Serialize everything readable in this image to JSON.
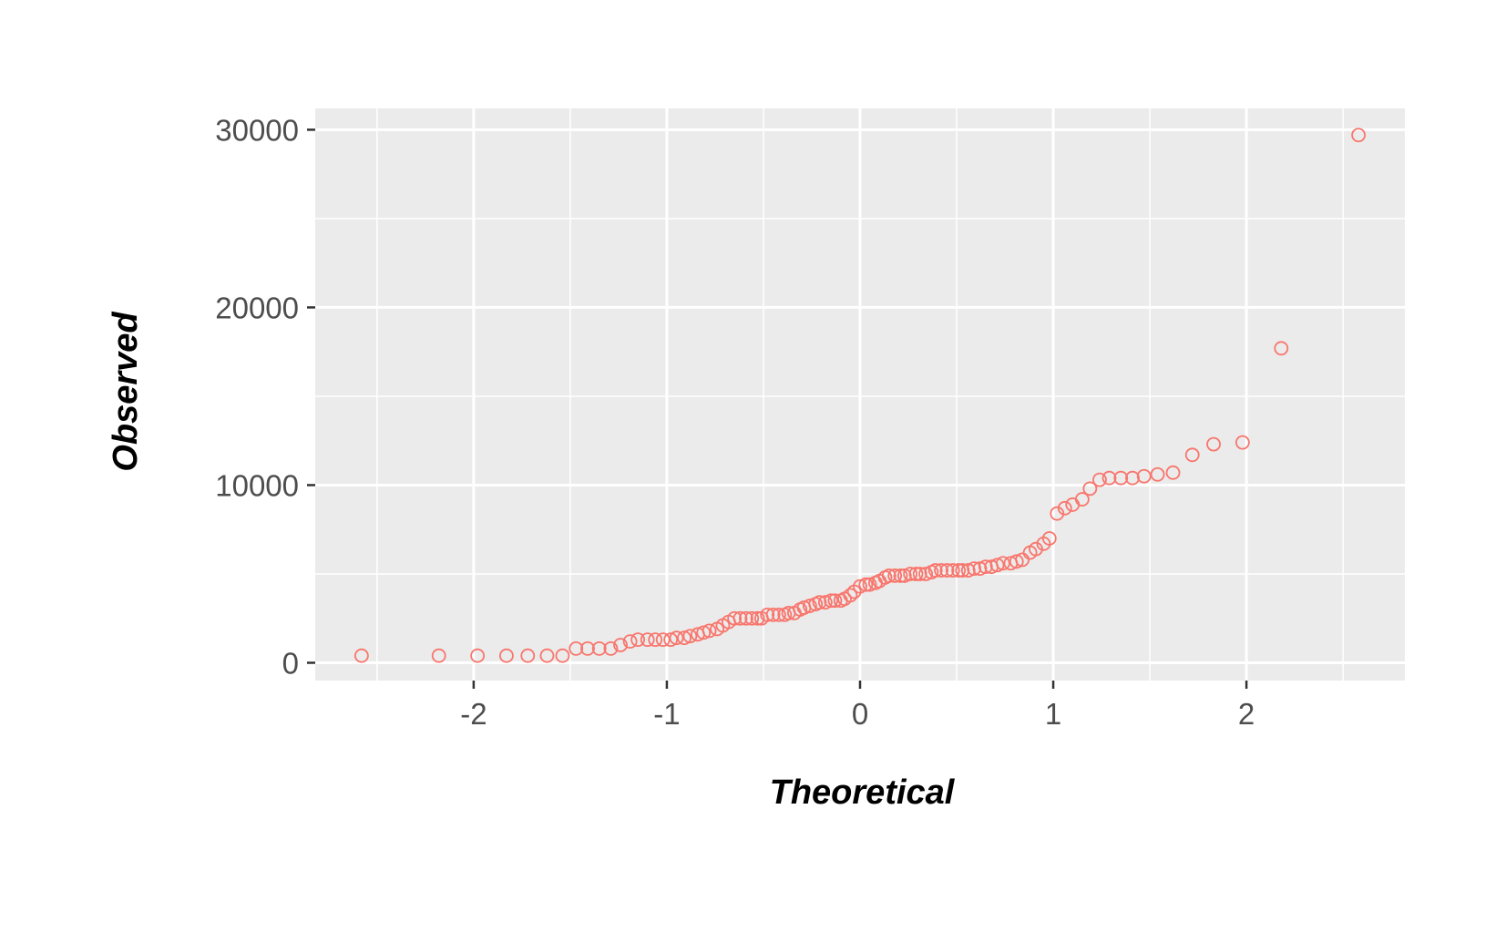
{
  "chart_data": {
    "type": "scatter",
    "title": "",
    "xlabel": "Theoretical",
    "ylabel": "Observed",
    "xlim": [
      -2.82,
      2.82
    ],
    "ylim": [
      -1000,
      31200
    ],
    "xticks": [
      -2,
      -1,
      0,
      1,
      2
    ],
    "xtick_labels": [
      "-2",
      "-1",
      "0",
      "1",
      "2"
    ],
    "yticks": [
      0,
      10000,
      20000,
      30000
    ],
    "ytick_labels": [
      "0",
      "10000",
      "20000",
      "30000"
    ],
    "grid": true,
    "legend": "none",
    "colors": {
      "point": "#F8766D",
      "panel": "#EBEBEB",
      "grid": "#FFFFFF"
    },
    "series": [
      {
        "x": [
          -2.58,
          -2.18,
          -1.98,
          -1.83,
          -1.72,
          -1.62,
          -1.54,
          -1.47,
          -1.41,
          -1.35,
          -1.29,
          -1.24,
          -1.19,
          -1.15,
          -1.1,
          -1.06,
          -1.02,
          -0.98,
          -0.95,
          -0.91,
          -0.88,
          -0.84,
          -0.81,
          -0.78,
          -0.74,
          -0.71,
          -0.68,
          -0.65,
          -0.62,
          -0.59,
          -0.56,
          -0.53,
          -0.51,
          -0.48,
          -0.45,
          -0.42,
          -0.39,
          -0.37,
          -0.34,
          -0.31,
          -0.29,
          -0.26,
          -0.23,
          -0.21,
          -0.18,
          -0.15,
          -0.13,
          -0.1,
          -0.08,
          -0.05,
          -0.03,
          0.0,
          0.03,
          0.05,
          0.08,
          0.1,
          0.13,
          0.15,
          0.18,
          0.21,
          0.23,
          0.26,
          0.29,
          0.31,
          0.34,
          0.37,
          0.39,
          0.42,
          0.45,
          0.48,
          0.51,
          0.53,
          0.56,
          0.59,
          0.62,
          0.65,
          0.68,
          0.71,
          0.74,
          0.78,
          0.81,
          0.84,
          0.88,
          0.91,
          0.95,
          0.98,
          1.02,
          1.06,
          1.1,
          1.15,
          1.19,
          1.24,
          1.29,
          1.35,
          1.41,
          1.47,
          1.54,
          1.62,
          1.72,
          1.83,
          1.98,
          2.18,
          2.58
        ],
        "y": [
          400,
          400,
          400,
          400,
          400,
          400,
          400,
          800,
          800,
          800,
          800,
          1000,
          1200,
          1300,
          1300,
          1300,
          1300,
          1300,
          1400,
          1400,
          1500,
          1600,
          1700,
          1800,
          1900,
          2100,
          2300,
          2500,
          2500,
          2500,
          2500,
          2500,
          2500,
          2700,
          2700,
          2700,
          2700,
          2800,
          2800,
          3000,
          3100,
          3200,
          3300,
          3400,
          3400,
          3500,
          3500,
          3500,
          3600,
          3800,
          4000,
          4300,
          4400,
          4400,
          4500,
          4600,
          4800,
          4900,
          4900,
          4900,
          4900,
          5000,
          5000,
          5000,
          5000,
          5100,
          5200,
          5200,
          5200,
          5200,
          5200,
          5200,
          5200,
          5300,
          5300,
          5400,
          5400,
          5500,
          5600,
          5600,
          5700,
          5800,
          6200,
          6400,
          6700,
          7000,
          8400,
          8700,
          8900,
          9200,
          9800,
          10300,
          10400,
          10400,
          10400,
          10500,
          10600,
          10700,
          11700,
          12300,
          12400,
          17700,
          29700
        ]
      }
    ]
  }
}
